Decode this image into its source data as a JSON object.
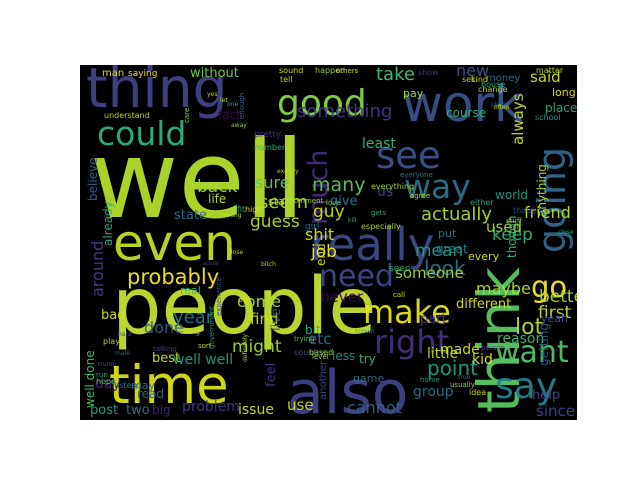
{
  "wordcloud": {
    "background": "#000000",
    "words": [
      {
        "text": "well",
        "color": "#b5de2b"
      },
      {
        "text": "people",
        "color": "#c4e033"
      },
      {
        "text": "think",
        "color": "#5ac864"
      },
      {
        "text": "thing",
        "color": "#414487"
      },
      {
        "text": "work",
        "color": "#3b528b"
      },
      {
        "text": "also",
        "color": "#404386"
      },
      {
        "text": "time",
        "color": "#d8e219"
      },
      {
        "text": "even",
        "color": "#c2df23"
      },
      {
        "text": "really",
        "color": "#3e4a89"
      },
      {
        "text": "good",
        "color": "#86d549"
      },
      {
        "text": "could",
        "color": "#2fb47c"
      },
      {
        "text": "see",
        "color": "#3a548c"
      },
      {
        "text": "going",
        "color": "#306a8e"
      },
      {
        "text": "way",
        "color": "#2c728e"
      },
      {
        "text": "make",
        "color": "#e5e419"
      },
      {
        "text": "want",
        "color": "#54c568"
      },
      {
        "text": "say",
        "color": "#26828e"
      },
      {
        "text": "right",
        "color": "#46327e"
      },
      {
        "text": "need",
        "color": "#3f4889"
      },
      {
        "text": "probably",
        "color": "#fde725"
      },
      {
        "text": "go",
        "color": "#fde725"
      },
      {
        "text": "much",
        "color": "#472c7a"
      },
      {
        "text": "something",
        "color": "#443a83"
      },
      {
        "text": "actually",
        "color": "#addc30"
      },
      {
        "text": "said",
        "color": "#c8e020"
      },
      {
        "text": "new",
        "color": "#38588c"
      },
      {
        "text": "take",
        "color": "#4ac16d"
      },
      {
        "text": "look",
        "color": "#2e6f8e"
      },
      {
        "text": "point",
        "color": "#1fa088"
      },
      {
        "text": "first",
        "color": "#c5e021"
      },
      {
        "text": "lot",
        "color": "#b5de2b"
      },
      {
        "text": "year",
        "color": "#2a788e"
      },
      {
        "text": "done",
        "color": "#33638d"
      },
      {
        "text": "might",
        "color": "#a0da39"
      },
      {
        "text": "etc",
        "color": "#2f6c8e"
      },
      {
        "text": "many",
        "color": "#5ec962"
      },
      {
        "text": "back",
        "color": "#9bd93c"
      },
      {
        "text": "seem",
        "color": "#addc30"
      },
      {
        "text": "sure",
        "color": "#5ec962"
      },
      {
        "text": "guess",
        "color": "#b2dd2d"
      },
      {
        "text": "job",
        "color": "#fde725"
      },
      {
        "text": "shit",
        "color": "#d5e21a"
      },
      {
        "text": "guy",
        "color": "#cde11d"
      },
      {
        "text": "used",
        "color": "#b5de2b"
      },
      {
        "text": "friend",
        "color": "#bddf26"
      },
      {
        "text": "always",
        "color": "#cae11f"
      },
      {
        "text": "mean",
        "color": "#1f9e89"
      },
      {
        "text": "keep",
        "color": "#32b67a"
      },
      {
        "text": "maybe",
        "color": "#b0dd2f"
      },
      {
        "text": "better",
        "color": "#a5db36"
      },
      {
        "text": "someone",
        "color": "#9bd93c"
      },
      {
        "text": "around",
        "color": "#424086"
      },
      {
        "text": "come",
        "color": "#aadc32"
      },
      {
        "text": "find",
        "color": "#cde11d"
      },
      {
        "text": "bad",
        "color": "#dde318"
      },
      {
        "text": "cannot",
        "color": "#355f8d"
      },
      {
        "text": "since",
        "color": "#404688"
      },
      {
        "text": "use",
        "color": "#c8e020"
      },
      {
        "text": "problem",
        "color": "#433e85"
      },
      {
        "text": "issue",
        "color": "#c8e020"
      },
      {
        "text": "post",
        "color": "#22a785"
      },
      {
        "text": "two",
        "color": "#2d718e"
      },
      {
        "text": "big",
        "color": "#482475"
      },
      {
        "text": "day",
        "color": "#482173"
      },
      {
        "text": "group",
        "color": "#2c728e"
      },
      {
        "text": "help",
        "color": "#3e4989"
      },
      {
        "text": "little",
        "color": "#c2df23"
      },
      {
        "text": "made",
        "color": "#d2e21b"
      },
      {
        "text": "kid",
        "color": "#dde318"
      },
      {
        "text": "reason",
        "color": "#3fbc73"
      },
      {
        "text": "getting",
        "color": "#355f8d"
      },
      {
        "text": "best",
        "color": "#cde11d"
      },
      {
        "text": "different",
        "color": "#dde318"
      },
      {
        "text": "part",
        "color": "#443a83"
      },
      {
        "text": "never",
        "color": "#440154"
      },
      {
        "text": "real",
        "color": "#3dbc74"
      },
      {
        "text": "life",
        "color": "#bddf26"
      },
      {
        "text": "state",
        "color": "#2d718e"
      },
      {
        "text": "give",
        "color": "#2c728e"
      },
      {
        "text": "least",
        "color": "#38b977"
      },
      {
        "text": "us",
        "color": "#3e4c8a"
      },
      {
        "text": "believe",
        "color": "#31668e"
      },
      {
        "text": "already",
        "color": "#2db27d"
      },
      {
        "text": "though",
        "color": "#3fbc73"
      },
      {
        "text": "anything",
        "color": "#b5de2b"
      },
      {
        "text": "world",
        "color": "#1fa188"
      },
      {
        "text": "end",
        "color": "#d0e11c"
      },
      {
        "text": "bit",
        "color": "#2fb47c"
      },
      {
        "text": "live",
        "color": "#3a548c"
      },
      {
        "text": "feel",
        "color": "#443983"
      },
      {
        "text": "less",
        "color": "#1f968b"
      },
      {
        "text": "another",
        "color": "#3e4989"
      },
      {
        "text": "try",
        "color": "#38b977"
      },
      {
        "text": "game",
        "color": "#2e6f8e"
      },
      {
        "text": "read",
        "color": "#34618d"
      },
      {
        "text": "well well",
        "color": "#1fa088"
      },
      {
        "text": "well done",
        "color": "#4ac16d"
      },
      {
        "text": "without",
        "color": "#7ad151"
      },
      {
        "text": "man",
        "color": "#e5e419"
      },
      {
        "text": "saying",
        "color": "#fde725"
      },
      {
        "text": "pay",
        "color": "#a5db36"
      },
      {
        "text": "course",
        "color": "#2db27d"
      },
      {
        "text": "money",
        "color": "#2c728e"
      },
      {
        "text": "long",
        "color": "#dde318"
      },
      {
        "text": "place",
        "color": "#26ad81"
      },
      {
        "text": "school",
        "color": "#1f9a8a"
      },
      {
        "text": "everyone",
        "color": "#26828e"
      },
      {
        "text": "put",
        "color": "#2a788e"
      },
      {
        "text": "great",
        "color": "#27808e"
      },
      {
        "text": "every",
        "color": "#d2e21b"
      },
      {
        "text": "yeah",
        "color": "#3b528b"
      },
      {
        "text": "fact",
        "color": "#440154"
      },
      {
        "text": "enough",
        "color": "#2e6e8e"
      },
      {
        "text": "sound",
        "color": "#dde318"
      },
      {
        "text": "happen",
        "color": "#a2da37"
      },
      {
        "text": "others",
        "color": "#cde11d"
      },
      {
        "text": "show",
        "color": "#424086"
      },
      {
        "text": "matter",
        "color": "#b5de2b"
      },
      {
        "text": "either",
        "color": "#26ad81"
      },
      {
        "text": "seen",
        "color": "#2fb47c"
      },
      {
        "text": "may",
        "color": "#2d708e"
      },
      {
        "text": "call",
        "color": "#d8e219"
      },
      {
        "text": "person",
        "color": "#3b528b"
      },
      {
        "text": "hope",
        "color": "#6ccd5a"
      },
      {
        "text": "instead",
        "color": "#2a788e"
      },
      {
        "text": "comment",
        "color": "#a0da39"
      },
      {
        "text": "love",
        "color": "#8bd646"
      },
      {
        "text": "gets",
        "color": "#2fb47c"
      },
      {
        "text": "pretty",
        "color": "#46327e"
      },
      {
        "text": "start",
        "color": "#b5de2b"
      },
      {
        "text": "high",
        "color": "#d8e219"
      },
      {
        "text": "girl",
        "color": "#2a788e"
      },
      {
        "text": "especially",
        "color": "#b0dd2f"
      },
      {
        "text": "trying",
        "color": "#5ec962"
      },
      {
        "text": "country",
        "color": "#3a548c"
      },
      {
        "text": "based",
        "color": "#a0da39"
      },
      {
        "text": "home",
        "color": "#1f9e89"
      },
      {
        "text": "usually",
        "color": "#a5db36"
      },
      {
        "text": "idea",
        "color": "#d5e21a"
      },
      {
        "text": "play",
        "color": "#b5de2b"
      },
      {
        "text": "talking",
        "color": "#3e4a89"
      },
      {
        "text": "sort",
        "color": "#c8e020"
      },
      {
        "text": "government",
        "color": "#1e9c89"
      },
      {
        "text": "old",
        "color": "#dde318"
      },
      {
        "text": "level",
        "color": "#b5de2b"
      },
      {
        "text": "fit",
        "color": "#22a785"
      },
      {
        "text": "true",
        "color": "#2a778e"
      },
      {
        "text": "thought",
        "color": "#3a548c"
      },
      {
        "text": "experience",
        "color": "#3e4c8a"
      },
      {
        "text": "likely",
        "color": "#33638d"
      },
      {
        "text": "house",
        "color": "#2fb47c"
      },
      {
        "text": "change",
        "color": "#c2df23"
      },
      {
        "text": "agree",
        "color": "#c2df23"
      },
      {
        "text": "number",
        "color": "#2fb47c"
      },
      {
        "text": "everything",
        "color": "#a0da39"
      },
      {
        "text": "understand",
        "color": "#c2df23"
      },
      {
        "text": "tell",
        "color": "#b5de2b"
      },
      {
        "text": "set",
        "color": "#c2df23"
      },
      {
        "text": "kind",
        "color": "#dde318"
      },
      {
        "text": "often",
        "color": "#c8e020"
      },
      {
        "text": "stuff",
        "color": "#8bd646"
      },
      {
        "text": "care",
        "color": "#8bd646"
      },
      {
        "text": "definitely",
        "color": "#c2df23"
      },
      {
        "text": "run",
        "color": "#2fb47c"
      },
      {
        "text": "male",
        "color": "#33638d"
      },
      {
        "text": "trump",
        "color": "#3a548c"
      },
      {
        "text": "close",
        "color": "#2fb47c"
      },
      {
        "text": "wrong",
        "color": "#b5de2b"
      },
      {
        "text": "seeing",
        "color": "#d8e219"
      },
      {
        "text": "hard",
        "color": "#3e4a89"
      },
      {
        "text": "kill",
        "color": "#2fb47c"
      },
      {
        "text": "lose",
        "color": "#c2df23"
      },
      {
        "text": "let",
        "color": "#c8e020"
      },
      {
        "text": "one",
        "color": "#2fb47c"
      },
      {
        "text": "yes",
        "color": "#c2df23"
      },
      {
        "text": "away",
        "color": "#a0da39"
      },
      {
        "text": "exactly",
        "color": "#b5de2b"
      },
      {
        "text": "actual",
        "color": "#3a548c"
      },
      {
        "text": "known",
        "color": "#2fb47c"
      },
      {
        "text": "bitch",
        "color": "#c2df23"
      }
    ]
  }
}
